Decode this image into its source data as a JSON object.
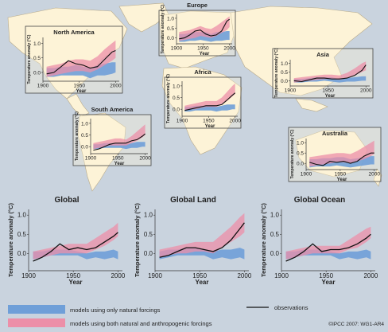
{
  "credit": "©IPCC 2007: WG1-AR4",
  "legend": {
    "natural": "models using only natural forcings",
    "both": "models using both natural and anthropogenic forcings",
    "obs": "observations"
  },
  "colors": {
    "sea": "#c9d3de",
    "land": "#fdf3d7",
    "blue": "#6f9fd8",
    "pink": "#ec8fa8",
    "overlap": "#b58fc4",
    "obs": "#111111"
  },
  "chart_data": [
    {
      "id": "north_america",
      "type": "area",
      "title": "North America",
      "xlabel": "Year",
      "ylabel": "Temperature anomaly (°C)",
      "xlim": [
        1900,
        2005
      ],
      "ylim": [
        -0.3,
        1.2
      ],
      "xticks": [
        1900,
        1950,
        2000
      ],
      "yticks": [
        0.0,
        0.5,
        1.0
      ],
      "x": [
        1905,
        1915,
        1925,
        1935,
        1945,
        1955,
        1965,
        1975,
        1985,
        1995,
        2000
      ],
      "natural": {
        "lo": [
          -0.15,
          -0.15,
          -0.1,
          -0.1,
          -0.1,
          -0.1,
          -0.2,
          -0.1,
          -0.1,
          -0.05,
          0.0
        ],
        "hi": [
          0.15,
          0.15,
          0.2,
          0.2,
          0.25,
          0.2,
          0.15,
          0.25,
          0.3,
          0.35,
          0.35
        ]
      },
      "both": {
        "lo": [
          -0.15,
          -0.1,
          -0.05,
          0.0,
          0.05,
          0.05,
          0.0,
          0.1,
          0.25,
          0.4,
          0.5
        ],
        "hi": [
          0.2,
          0.25,
          0.3,
          0.4,
          0.45,
          0.45,
          0.4,
          0.55,
          0.8,
          1.0,
          1.1
        ]
      },
      "obs": [
        -0.05,
        0.0,
        0.2,
        0.4,
        0.3,
        0.25,
        0.15,
        0.2,
        0.45,
        0.7,
        0.75
      ]
    },
    {
      "id": "europe",
      "type": "area",
      "title": "Europe",
      "xlabel": "Year",
      "ylabel": "Temperature anomaly (°C)",
      "xlim": [
        1900,
        2005
      ],
      "ylim": [
        -0.3,
        1.2
      ],
      "xticks": [
        1900,
        1950,
        2000
      ],
      "yticks": [
        0.0,
        0.5,
        1.0
      ],
      "x": [
        1905,
        1915,
        1925,
        1935,
        1945,
        1955,
        1965,
        1975,
        1985,
        1995,
        2000
      ],
      "natural": {
        "lo": [
          -0.2,
          -0.2,
          -0.15,
          -0.15,
          -0.1,
          -0.15,
          -0.2,
          -0.15,
          -0.15,
          -0.1,
          -0.1
        ],
        "hi": [
          0.2,
          0.2,
          0.25,
          0.3,
          0.3,
          0.3,
          0.2,
          0.3,
          0.3,
          0.35,
          0.35
        ]
      },
      "both": {
        "lo": [
          -0.15,
          -0.1,
          -0.05,
          0.0,
          0.1,
          0.05,
          0.0,
          0.1,
          0.25,
          0.4,
          0.55
        ],
        "hi": [
          0.3,
          0.35,
          0.4,
          0.5,
          0.6,
          0.5,
          0.45,
          0.6,
          0.8,
          1.0,
          1.1
        ]
      },
      "obs": [
        -0.05,
        0.0,
        0.15,
        0.35,
        0.4,
        0.2,
        0.1,
        0.15,
        0.35,
        0.85,
        0.95
      ]
    },
    {
      "id": "asia",
      "type": "area",
      "title": "Asia",
      "xlabel": "Year",
      "ylabel": "Temperature anomaly (°C)",
      "xlim": [
        1900,
        2005
      ],
      "ylim": [
        -0.3,
        1.2
      ],
      "xticks": [
        1900,
        1950,
        2000
      ],
      "yticks": [
        0.0,
        0.5,
        1.0
      ],
      "x": [
        1905,
        1915,
        1925,
        1935,
        1945,
        1955,
        1965,
        1975,
        1985,
        1995,
        2000
      ],
      "natural": {
        "lo": [
          -0.1,
          -0.1,
          -0.05,
          -0.05,
          0.0,
          -0.05,
          -0.1,
          -0.05,
          -0.05,
          0.0,
          0.0
        ],
        "hi": [
          0.1,
          0.1,
          0.15,
          0.2,
          0.2,
          0.2,
          0.1,
          0.15,
          0.2,
          0.25,
          0.25
        ]
      },
      "both": {
        "lo": [
          -0.1,
          -0.05,
          0.0,
          0.05,
          0.1,
          0.1,
          0.05,
          0.15,
          0.3,
          0.5,
          0.6
        ],
        "hi": [
          0.15,
          0.2,
          0.25,
          0.3,
          0.35,
          0.35,
          0.3,
          0.45,
          0.7,
          1.0,
          1.1
        ]
      },
      "obs": [
        0.0,
        -0.05,
        0.05,
        0.15,
        0.15,
        0.1,
        0.1,
        0.15,
        0.3,
        0.6,
        0.9
      ]
    },
    {
      "id": "africa",
      "type": "area",
      "title": "Africa",
      "xlabel": "Year",
      "ylabel": "Temperature anomaly (°C)",
      "xlim": [
        1900,
        2005
      ],
      "ylim": [
        -0.3,
        1.2
      ],
      "xticks": [
        1900,
        1950,
        2000
      ],
      "yticks": [
        0.0,
        0.5,
        1.0
      ],
      "x": [
        1905,
        1915,
        1925,
        1935,
        1945,
        1955,
        1965,
        1975,
        1985,
        1995,
        2000
      ],
      "natural": {
        "lo": [
          -0.1,
          -0.1,
          -0.05,
          -0.05,
          -0.05,
          -0.05,
          -0.1,
          -0.05,
          -0.05,
          0.0,
          0.0
        ],
        "hi": [
          0.1,
          0.1,
          0.15,
          0.15,
          0.15,
          0.15,
          0.1,
          0.15,
          0.2,
          0.2,
          0.2
        ]
      },
      "both": {
        "lo": [
          -0.05,
          0.0,
          0.0,
          0.05,
          0.1,
          0.1,
          0.1,
          0.2,
          0.35,
          0.55,
          0.65
        ],
        "hi": [
          0.15,
          0.2,
          0.25,
          0.3,
          0.35,
          0.35,
          0.35,
          0.5,
          0.75,
          1.0,
          1.1
        ]
      },
      "obs": [
        -0.05,
        0.0,
        0.05,
        0.1,
        0.15,
        0.15,
        0.15,
        0.2,
        0.4,
        0.6,
        0.7
      ]
    },
    {
      "id": "south_america",
      "type": "area",
      "title": "South America",
      "xlabel": "Year",
      "ylabel": "Temperature anomaly (°C)",
      "xlim": [
        1900,
        2005
      ],
      "ylim": [
        -0.3,
        1.2
      ],
      "xticks": [
        1900,
        1950,
        2000
      ],
      "yticks": [
        0.0,
        0.5,
        1.0
      ],
      "x": [
        1905,
        1915,
        1925,
        1935,
        1945,
        1955,
        1965,
        1975,
        1985,
        1995,
        2000
      ],
      "natural": {
        "lo": [
          -0.1,
          -0.1,
          -0.05,
          -0.05,
          -0.05,
          -0.05,
          -0.1,
          -0.05,
          -0.05,
          0.0,
          0.0
        ],
        "hi": [
          0.1,
          0.1,
          0.15,
          0.15,
          0.15,
          0.15,
          0.1,
          0.15,
          0.2,
          0.2,
          0.2
        ]
      },
      "both": {
        "lo": [
          -0.1,
          -0.05,
          0.0,
          0.05,
          0.05,
          0.05,
          0.05,
          0.15,
          0.25,
          0.4,
          0.5
        ],
        "hi": [
          0.15,
          0.2,
          0.25,
          0.3,
          0.35,
          0.35,
          0.3,
          0.45,
          0.65,
          0.85,
          0.95
        ]
      },
      "obs": [
        -0.15,
        -0.1,
        0.0,
        0.1,
        0.15,
        0.15,
        0.15,
        0.25,
        0.3,
        0.45,
        0.55
      ]
    },
    {
      "id": "australia",
      "type": "area",
      "title": "Australia",
      "xlabel": "Year",
      "ylabel": "Temperature anomaly (°C)",
      "xlim": [
        1900,
        2005
      ],
      "ylim": [
        -0.3,
        1.2
      ],
      "xticks": [
        1900,
        1950,
        2000
      ],
      "yticks": [
        0.0,
        0.5,
        1.0
      ],
      "x": [
        1905,
        1915,
        1925,
        1935,
        1945,
        1955,
        1965,
        1975,
        1985,
        1995,
        2000
      ],
      "natural": {
        "lo": [
          -0.2,
          -0.15,
          -0.15,
          -0.15,
          -0.1,
          -0.15,
          -0.2,
          -0.15,
          -0.1,
          -0.05,
          -0.05
        ],
        "hi": [
          0.2,
          0.2,
          0.25,
          0.25,
          0.3,
          0.3,
          0.2,
          0.25,
          0.3,
          0.35,
          0.35
        ]
      },
      "both": {
        "lo": [
          -0.15,
          -0.1,
          -0.05,
          0.0,
          0.05,
          0.05,
          0.0,
          0.1,
          0.2,
          0.35,
          0.45
        ],
        "hi": [
          0.3,
          0.35,
          0.4,
          0.45,
          0.5,
          0.5,
          0.45,
          0.6,
          0.8,
          1.0,
          1.1
        ]
      },
      "obs": [
        0.05,
        -0.05,
        -0.1,
        0.1,
        0.05,
        0.1,
        0.0,
        0.1,
        0.35,
        0.5,
        0.5
      ]
    },
    {
      "id": "global",
      "type": "area",
      "title": "Global",
      "xlabel": "Year",
      "ylabel": "Temperature anomaly (°C)",
      "xlim": [
        1900,
        2005
      ],
      "ylim": [
        -0.45,
        1.15
      ],
      "xticks": [
        1900,
        1950,
        2000
      ],
      "yticks": [
        0.0,
        0.5,
        1.0
      ],
      "x": [
        1905,
        1915,
        1925,
        1935,
        1945,
        1955,
        1965,
        1975,
        1985,
        1995,
        2000
      ],
      "natural": {
        "lo": [
          -0.15,
          -0.1,
          -0.05,
          -0.05,
          -0.05,
          -0.05,
          -0.15,
          -0.1,
          -0.15,
          -0.1,
          -0.15
        ],
        "hi": [
          0.05,
          0.05,
          0.1,
          0.1,
          0.1,
          0.05,
          0.0,
          0.05,
          0.05,
          0.1,
          0.05
        ]
      },
      "both": {
        "lo": [
          -0.15,
          -0.1,
          -0.05,
          0.0,
          0.0,
          0.0,
          0.0,
          0.1,
          0.2,
          0.35,
          0.45
        ],
        "hi": [
          0.05,
          0.1,
          0.15,
          0.2,
          0.25,
          0.25,
          0.25,
          0.4,
          0.55,
          0.7,
          0.8
        ]
      },
      "obs": [
        -0.2,
        -0.1,
        0.05,
        0.25,
        0.1,
        0.15,
        0.1,
        0.15,
        0.3,
        0.45,
        0.55
      ]
    },
    {
      "id": "global_land",
      "type": "area",
      "title": "Global Land",
      "xlabel": "Year",
      "ylabel": "Temperature anomaly (°C)",
      "xlim": [
        1900,
        2005
      ],
      "ylim": [
        -0.45,
        1.15
      ],
      "xticks": [
        1900,
        1950,
        2000
      ],
      "yticks": [
        0.0,
        0.5,
        1.0
      ],
      "x": [
        1905,
        1915,
        1925,
        1935,
        1945,
        1955,
        1965,
        1975,
        1985,
        1995,
        2000
      ],
      "natural": {
        "lo": [
          -0.15,
          -0.1,
          -0.05,
          -0.05,
          -0.05,
          -0.05,
          -0.15,
          -0.1,
          -0.15,
          -0.1,
          -0.15
        ],
        "hi": [
          0.05,
          0.1,
          0.1,
          0.15,
          0.15,
          0.1,
          0.05,
          0.1,
          0.1,
          0.15,
          0.1
        ]
      },
      "both": {
        "lo": [
          -0.1,
          -0.05,
          0.0,
          0.0,
          0.05,
          0.05,
          0.0,
          0.15,
          0.3,
          0.45,
          0.55
        ],
        "hi": [
          0.1,
          0.15,
          0.2,
          0.25,
          0.3,
          0.3,
          0.3,
          0.5,
          0.7,
          0.95,
          1.05
        ]
      },
      "obs": [
        -0.1,
        -0.05,
        0.05,
        0.15,
        0.15,
        0.1,
        0.05,
        0.15,
        0.35,
        0.65,
        0.8
      ]
    },
    {
      "id": "global_ocean",
      "type": "area",
      "title": "Global Ocean",
      "xlabel": "Year",
      "ylabel": "Temperature anomaly (°C)",
      "xlim": [
        1900,
        2005
      ],
      "ylim": [
        -0.45,
        1.15
      ],
      "xticks": [
        1900,
        1950,
        2000
      ],
      "yticks": [
        0.0,
        0.5,
        1.0
      ],
      "x": [
        1905,
        1915,
        1925,
        1935,
        1945,
        1955,
        1965,
        1975,
        1985,
        1995,
        2000
      ],
      "natural": {
        "lo": [
          -0.15,
          -0.1,
          -0.05,
          -0.05,
          -0.05,
          -0.05,
          -0.15,
          -0.1,
          -0.15,
          -0.1,
          -0.15
        ],
        "hi": [
          0.05,
          0.05,
          0.1,
          0.1,
          0.1,
          0.05,
          0.0,
          0.05,
          0.05,
          0.1,
          0.05
        ]
      },
      "both": {
        "lo": [
          -0.15,
          -0.1,
          -0.05,
          0.0,
          0.0,
          0.0,
          0.0,
          0.1,
          0.15,
          0.3,
          0.4
        ],
        "hi": [
          0.05,
          0.1,
          0.15,
          0.2,
          0.2,
          0.2,
          0.2,
          0.35,
          0.5,
          0.65,
          0.7
        ]
      },
      "obs": [
        -0.2,
        -0.1,
        0.05,
        0.25,
        0.05,
        0.1,
        0.1,
        0.15,
        0.25,
        0.4,
        0.5
      ]
    }
  ]
}
